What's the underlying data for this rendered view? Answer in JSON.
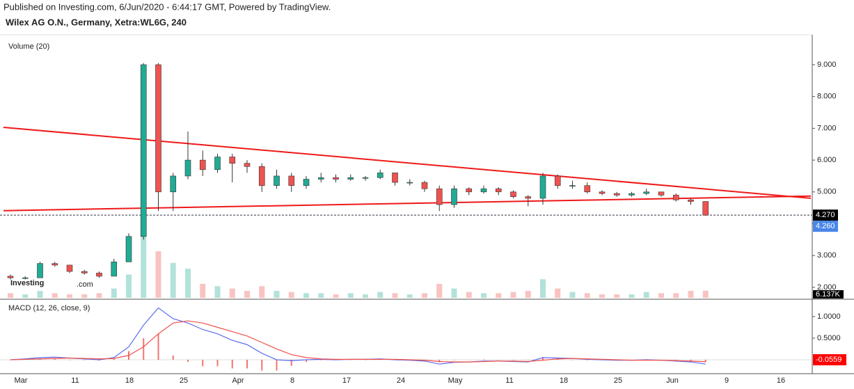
{
  "header": {
    "published": "Published on Investing.com, 6/Jun/2020 - 6:44:17 GMT, Powered by TradingView.",
    "symbol": "Wilex AG O.N., Germany, Xetra:WL6G, 240",
    "logo": "Investing",
    "logo_suffix": ".com"
  },
  "chart_data": {
    "type": "candlestick",
    "volume_title": "Volume (20)",
    "macd_title": "MACD (12, 26, close, 9)",
    "categories": [
      "Mar",
      "11",
      "18",
      "25",
      "Apr",
      "8",
      "17",
      "24",
      "May",
      "11",
      "18",
      "25",
      "Jun",
      "9",
      "16"
    ],
    "ylim": [
      1.67,
      9.94
    ],
    "yticks": [
      {
        "value": 2,
        "label": "2.000"
      },
      {
        "value": 3,
        "label": "3.000"
      },
      {
        "value": 4,
        "label": "4.000"
      },
      {
        "value": 5,
        "label": "5.000"
      },
      {
        "value": 6,
        "label": "6.000"
      },
      {
        "value": 7,
        "label": "7.000"
      },
      {
        "value": 8,
        "label": "8.000"
      },
      {
        "value": 9,
        "label": "9.000"
      }
    ],
    "up_color": "#22ab94",
    "down_color": "#ef5350",
    "candles": [
      [
        2.35,
        2.4,
        2.25,
        2.3
      ],
      [
        2.3,
        2.35,
        2.25,
        2.3
      ],
      [
        2.3,
        2.8,
        2.3,
        2.75
      ],
      [
        2.75,
        2.8,
        2.65,
        2.7
      ],
      [
        2.7,
        2.7,
        2.45,
        2.5
      ],
      [
        2.5,
        2.55,
        2.4,
        2.45
      ],
      [
        2.45,
        2.5,
        2.3,
        2.35
      ],
      [
        2.35,
        2.9,
        2.35,
        2.8
      ],
      [
        2.8,
        3.7,
        2.8,
        3.6
      ],
      [
        3.6,
        9.05,
        3.5,
        9.0
      ],
      [
        9.0,
        9.05,
        4.4,
        5.0
      ],
      [
        5.0,
        5.6,
        4.4,
        5.5
      ],
      [
        5.5,
        6.9,
        5.4,
        6.0
      ],
      [
        6.0,
        6.3,
        5.5,
        5.7
      ],
      [
        5.7,
        6.2,
        5.6,
        6.1
      ],
      [
        6.1,
        6.2,
        5.3,
        5.9
      ],
      [
        5.9,
        6.0,
        5.6,
        5.8
      ],
      [
        5.8,
        5.9,
        5.0,
        5.2
      ],
      [
        5.2,
        5.7,
        5.1,
        5.5
      ],
      [
        5.5,
        5.6,
        5.0,
        5.2
      ],
      [
        5.2,
        5.5,
        5.1,
        5.4
      ],
      [
        5.4,
        5.6,
        5.3,
        5.45
      ],
      [
        5.45,
        5.55,
        5.3,
        5.4
      ],
      [
        5.4,
        5.55,
        5.35,
        5.45
      ],
      [
        5.45,
        5.5,
        5.35,
        5.45
      ],
      [
        5.45,
        5.7,
        5.4,
        5.6
      ],
      [
        5.6,
        5.6,
        5.2,
        5.3
      ],
      [
        5.3,
        5.4,
        5.2,
        5.3
      ],
      [
        5.3,
        5.35,
        5.0,
        5.1
      ],
      [
        5.1,
        5.2,
        4.4,
        4.6
      ],
      [
        4.6,
        5.2,
        4.5,
        5.1
      ],
      [
        5.1,
        5.15,
        4.9,
        5.0
      ],
      [
        5.0,
        5.2,
        4.95,
        5.1
      ],
      [
        5.1,
        5.15,
        4.9,
        5.0
      ],
      [
        5.0,
        5.05,
        4.8,
        4.85
      ],
      [
        4.85,
        4.9,
        4.55,
        4.8
      ],
      [
        4.8,
        5.6,
        4.6,
        5.5
      ],
      [
        5.5,
        5.55,
        5.1,
        5.2
      ],
      [
        5.2,
        5.35,
        5.1,
        5.2
      ],
      [
        5.2,
        5.3,
        4.95,
        5.0
      ],
      [
        5.0,
        5.05,
        4.9,
        4.95
      ],
      [
        4.95,
        5.0,
        4.85,
        4.9
      ],
      [
        4.9,
        5.0,
        4.85,
        4.95
      ],
      [
        4.95,
        5.1,
        4.9,
        5.0
      ],
      [
        5.0,
        5.0,
        4.85,
        4.9
      ],
      [
        4.9,
        4.95,
        4.7,
        4.75
      ],
      [
        4.75,
        4.8,
        4.6,
        4.7
      ],
      [
        4.7,
        4.7,
        4.25,
        4.27
      ]
    ],
    "volume": [
      4,
      3,
      6,
      4,
      3,
      3,
      4,
      8,
      20,
      55,
      40,
      30,
      25,
      12,
      10,
      8,
      6,
      10,
      6,
      5,
      4,
      4,
      3,
      4,
      3,
      5,
      4,
      3,
      4,
      12,
      8,
      5,
      4,
      4,
      5,
      6,
      16,
      8,
      5,
      4,
      3,
      3,
      3,
      5,
      4,
      4,
      6,
      6.137
    ],
    "volume_label": {
      "value": 6.137,
      "label": "6.137K"
    },
    "last_price": {
      "value": 4.27,
      "label": "4.270",
      "color": "#000000"
    },
    "bid_price": {
      "value": 4.26,
      "label": "4.260",
      "color": "#4a86e8"
    },
    "trendlines": [
      {
        "start": 7.03,
        "end": 4.8,
        "color": "#f01818"
      },
      {
        "start": 4.41,
        "end": 4.87,
        "color": "#f01818"
      }
    ],
    "macd": {
      "ylim": [
        -0.29,
        1.4
      ],
      "yticks": [
        {
          "value": 0.5,
          "label": "0.5000"
        },
        {
          "value": 1,
          "label": "1.0000"
        }
      ],
      "macd_color": "#5b6cf0",
      "signal_color": "#f0504a",
      "macd": [
        0,
        0.02,
        0.05,
        0.06,
        0.04,
        0.02,
        0,
        0.05,
        0.3,
        0.8,
        1.2,
        0.95,
        0.85,
        0.7,
        0.6,
        0.45,
        0.35,
        0.15,
        0.0,
        -0.02,
        0,
        0.01,
        0,
        0.01,
        0.01,
        0.02,
        0,
        -0.01,
        -0.03,
        -0.1,
        -0.06,
        -0.05,
        -0.03,
        -0.03,
        -0.04,
        -0.05,
        0.05,
        0.04,
        0.03,
        0.01,
        0,
        -0.01,
        -0.01,
        0,
        -0.01,
        -0.03,
        -0.05,
        -0.1
      ],
      "signal": [
        0,
        0.01,
        0.02,
        0.03,
        0.04,
        0.03,
        0.02,
        0.03,
        0.1,
        0.3,
        0.6,
        0.85,
        0.9,
        0.85,
        0.75,
        0.65,
        0.55,
        0.4,
        0.25,
        0.12,
        0.05,
        0.02,
        0.01,
        0.01,
        0.01,
        0.01,
        0.01,
        0,
        -0.01,
        -0.04,
        -0.05,
        -0.05,
        -0.04,
        -0.03,
        -0.03,
        -0.04,
        -0.01,
        0.02,
        0.03,
        0.02,
        0.01,
        0,
        -0.01,
        -0.01,
        -0.01,
        -0.02,
        -0.03,
        -0.0441
      ],
      "histogram": [
        0,
        0.01,
        0.03,
        0.03,
        0,
        -0.01,
        -0.02,
        0.02,
        0.2,
        0.5,
        0.6,
        0.1,
        -0.05,
        -0.15,
        -0.15,
        -0.2,
        -0.2,
        -0.25,
        -0.25,
        -0.14,
        -0.05,
        -0.01,
        -0.01,
        0,
        0,
        0.01,
        -0.01,
        -0.01,
        -0.02,
        -0.06,
        -0.01,
        0,
        0.01,
        0,
        -0.01,
        -0.01,
        0.06,
        0.02,
        0,
        -0.01,
        -0.01,
        -0.01,
        0,
        0.01,
        0,
        -0.01,
        -0.02,
        -0.0559
      ]
    }
  }
}
